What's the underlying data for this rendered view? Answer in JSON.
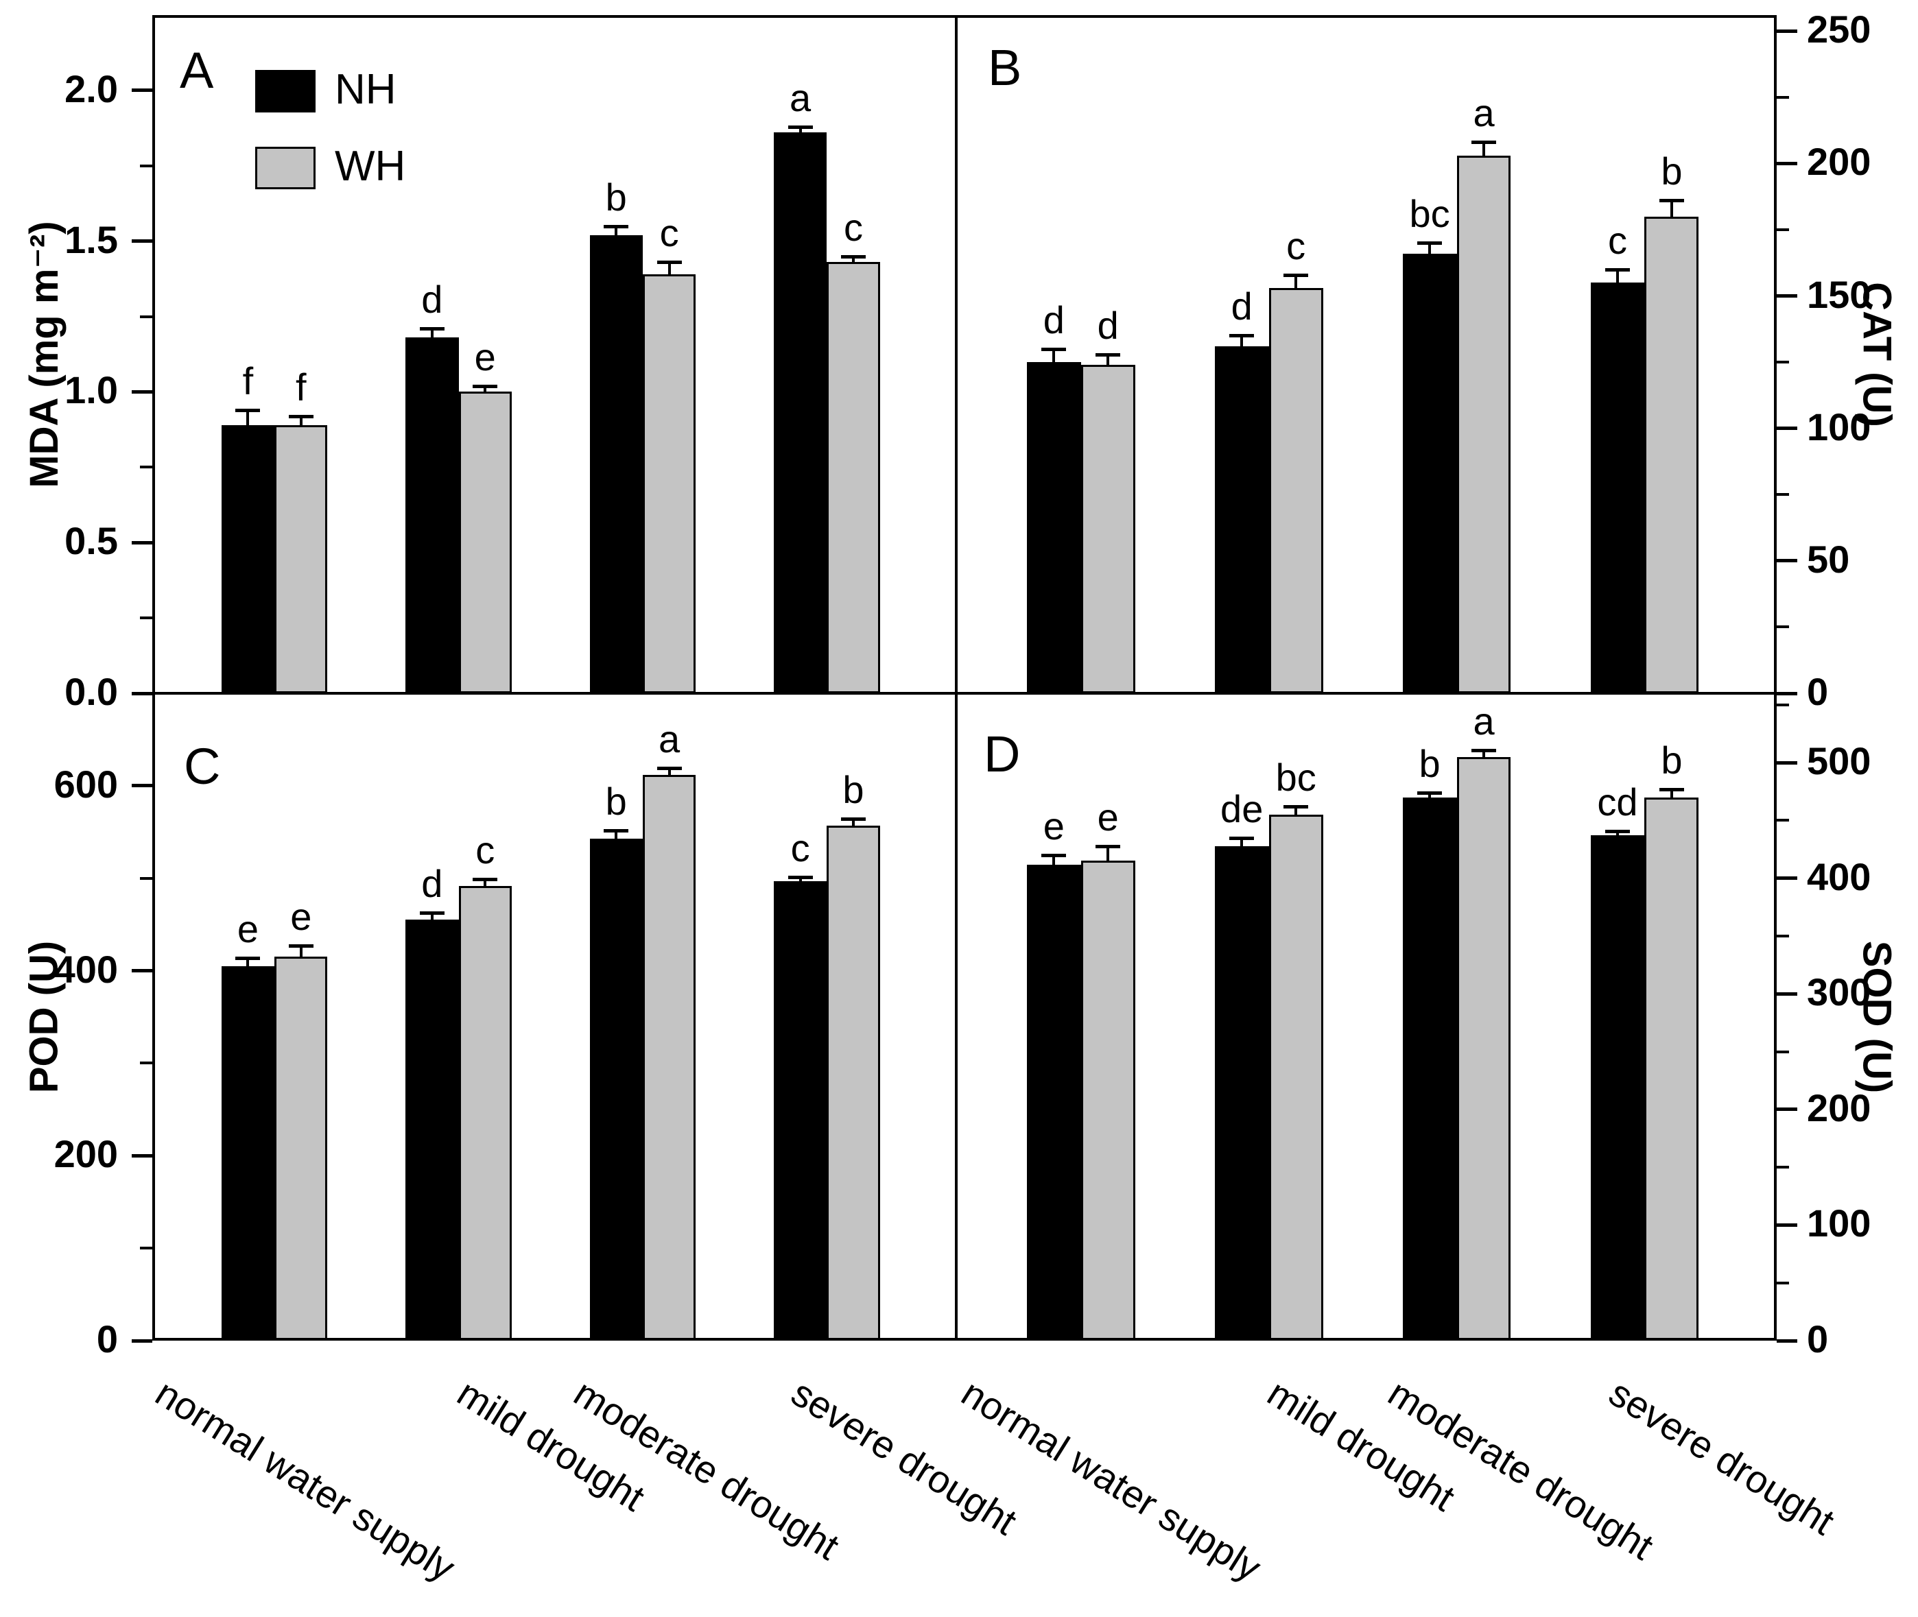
{
  "figure": {
    "categories": [
      "normal water supply",
      "mild drought",
      "moderate drought",
      "severe drought"
    ],
    "legend": {
      "items": [
        {
          "label": "NH",
          "color": "#000000"
        },
        {
          "label": "WH",
          "color": "#c4c4c4"
        }
      ]
    },
    "colors": {
      "bar_black": "#000000",
      "bar_gray": "#c4c4c4",
      "frame": "#000000",
      "text": "#000000"
    }
  },
  "chart_data": [
    {
      "panel_label": "A",
      "type": "bar",
      "ylabel": "MDA (mg m⁻²)",
      "axis_side": "left",
      "ylim": [
        0,
        2.25
      ],
      "yticks": [
        0,
        0.5,
        1.0,
        1.5,
        2.0
      ],
      "ytick_labels": [
        "0.0",
        "0.5",
        "1.0",
        "1.5",
        "2.0"
      ],
      "minor_tick_step": 0.25,
      "grid": false,
      "legend_position": "top-left-inside",
      "categories": [
        "normal water supply",
        "mild drought",
        "moderate drought",
        "severe drought"
      ],
      "series": [
        {
          "name": "NH",
          "color": "#000000",
          "values": [
            0.89,
            1.18,
            1.52,
            1.86
          ],
          "errors": [
            0.05,
            0.03,
            0.03,
            0.02
          ],
          "letters": [
            "f",
            "d",
            "b",
            "a"
          ]
        },
        {
          "name": "WH",
          "color": "#c4c4c4",
          "values": [
            0.89,
            1.0,
            1.39,
            1.43
          ],
          "errors": [
            0.03,
            0.02,
            0.04,
            0.02
          ],
          "letters": [
            "f",
            "e",
            "c",
            "c"
          ]
        }
      ]
    },
    {
      "panel_label": "B",
      "type": "bar",
      "ylabel": "CAT (U)",
      "axis_side": "right",
      "ylim": [
        0,
        256
      ],
      "yticks": [
        0,
        50,
        100,
        150,
        200,
        250
      ],
      "ytick_labels": [
        "0",
        "50",
        "100",
        "150",
        "200",
        "250"
      ],
      "minor_tick_step": 25,
      "grid": false,
      "categories": [
        "normal water supply",
        "mild drought",
        "moderate drought",
        "severe drought"
      ],
      "series": [
        {
          "name": "NH",
          "color": "#000000",
          "values": [
            125,
            131,
            166,
            155
          ],
          "errors": [
            5,
            4,
            4,
            5
          ],
          "letters": [
            "d",
            "d",
            "bc",
            "c"
          ]
        },
        {
          "name": "WH",
          "color": "#c4c4c4",
          "values": [
            124,
            153,
            203,
            180
          ],
          "errors": [
            4,
            5,
            5,
            6
          ],
          "letters": [
            "d",
            "c",
            "a",
            "b"
          ]
        }
      ]
    },
    {
      "panel_label": "C",
      "type": "bar",
      "ylabel": "POD (U)",
      "axis_side": "left",
      "ylim": [
        0,
        700
      ],
      "yticks": [
        0,
        200,
        400,
        600
      ],
      "ytick_labels": [
        "0",
        "200",
        "400",
        "600"
      ],
      "minor_tick_step": 100,
      "grid": false,
      "categories": [
        "normal water supply",
        "mild drought",
        "moderate drought",
        "severe drought"
      ],
      "series": [
        {
          "name": "NH",
          "color": "#000000",
          "values": [
            405,
            455,
            543,
            497
          ],
          "errors": [
            9,
            8,
            9,
            4
          ],
          "letters": [
            "e",
            "d",
            "b",
            "c"
          ]
        },
        {
          "name": "WH",
          "color": "#c4c4c4",
          "values": [
            415,
            492,
            612,
            557
          ],
          "errors": [
            12,
            7,
            7,
            7
          ],
          "letters": [
            "e",
            "c",
            "a",
            "b"
          ]
        }
      ]
    },
    {
      "panel_label": "D",
      "type": "bar",
      "ylabel": "SOD (U)",
      "axis_side": "right",
      "ylim": [
        0,
        560
      ],
      "yticks": [
        0,
        100,
        200,
        300,
        400,
        500
      ],
      "ytick_labels": [
        "0",
        "100",
        "200",
        "300",
        "400",
        "500"
      ],
      "minor_tick_step": 50,
      "grid": false,
      "categories": [
        "normal water supply",
        "mild drought",
        "moderate drought",
        "severe drought"
      ],
      "series": [
        {
          "name": "NH",
          "color": "#000000",
          "values": [
            412,
            428,
            470,
            437
          ],
          "errors": [
            8,
            7,
            4,
            4
          ],
          "letters": [
            "e",
            "de",
            "b",
            "cd"
          ]
        },
        {
          "name": "WH",
          "color": "#c4c4c4",
          "values": [
            415,
            455,
            505,
            470
          ],
          "errors": [
            13,
            7,
            6,
            7
          ],
          "letters": [
            "e",
            "bc",
            "a",
            "b"
          ]
        }
      ]
    }
  ]
}
